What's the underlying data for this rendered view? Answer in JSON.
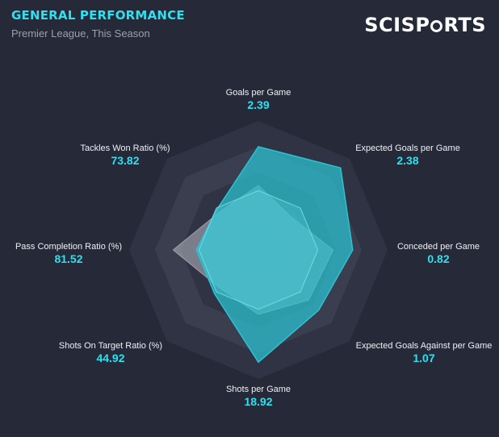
{
  "header": {
    "title": "GENERAL PERFORMANCE",
    "subtitle": "Premier League, This Season",
    "logo_text": "SCISPORTS"
  },
  "colors": {
    "accent": "#2ee0f0",
    "player_fill": "#2bc3d3",
    "comparison_fill": "#b9b9c4",
    "background": "#262a38",
    "ring_dark": "#2f3343",
    "ring_light": "#3a3e4f"
  },
  "chart_data": {
    "type": "radar",
    "axes": [
      {
        "label": "Goals per Game",
        "value_text": "2.39"
      },
      {
        "label": "Expected Goals per Game",
        "value_text": "2.38"
      },
      {
        "label": "Conceded per Game",
        "value_text": "0.82"
      },
      {
        "label": "Expected Goals Against per Game",
        "value_text": "1.07"
      },
      {
        "label": "Shots per Game",
        "value_text": "18.92"
      },
      {
        "label": "Shots On Target Ratio (%)",
        "value_text": "44.92"
      },
      {
        "label": "Pass Completion Ratio (%)",
        "value_text": "81.52"
      },
      {
        "label": "Tackles Won Ratio (%)",
        "value_text": "73.82"
      }
    ],
    "series": [
      {
        "values": [
          0.8,
          0.9,
          0.73,
          0.66,
          0.87,
          0.48,
          0.48,
          0.45
        ]
      },
      {
        "values": [
          0.5,
          0.36,
          0.58,
          0.55,
          0.5,
          0.42,
          0.66,
          0.42
        ]
      }
    ],
    "baseline": [
      0.46,
      0.46,
      0.46,
      0.46,
      0.46,
      0.46,
      0.46,
      0.46
    ],
    "rings": 5,
    "range": [
      0,
      1
    ]
  }
}
